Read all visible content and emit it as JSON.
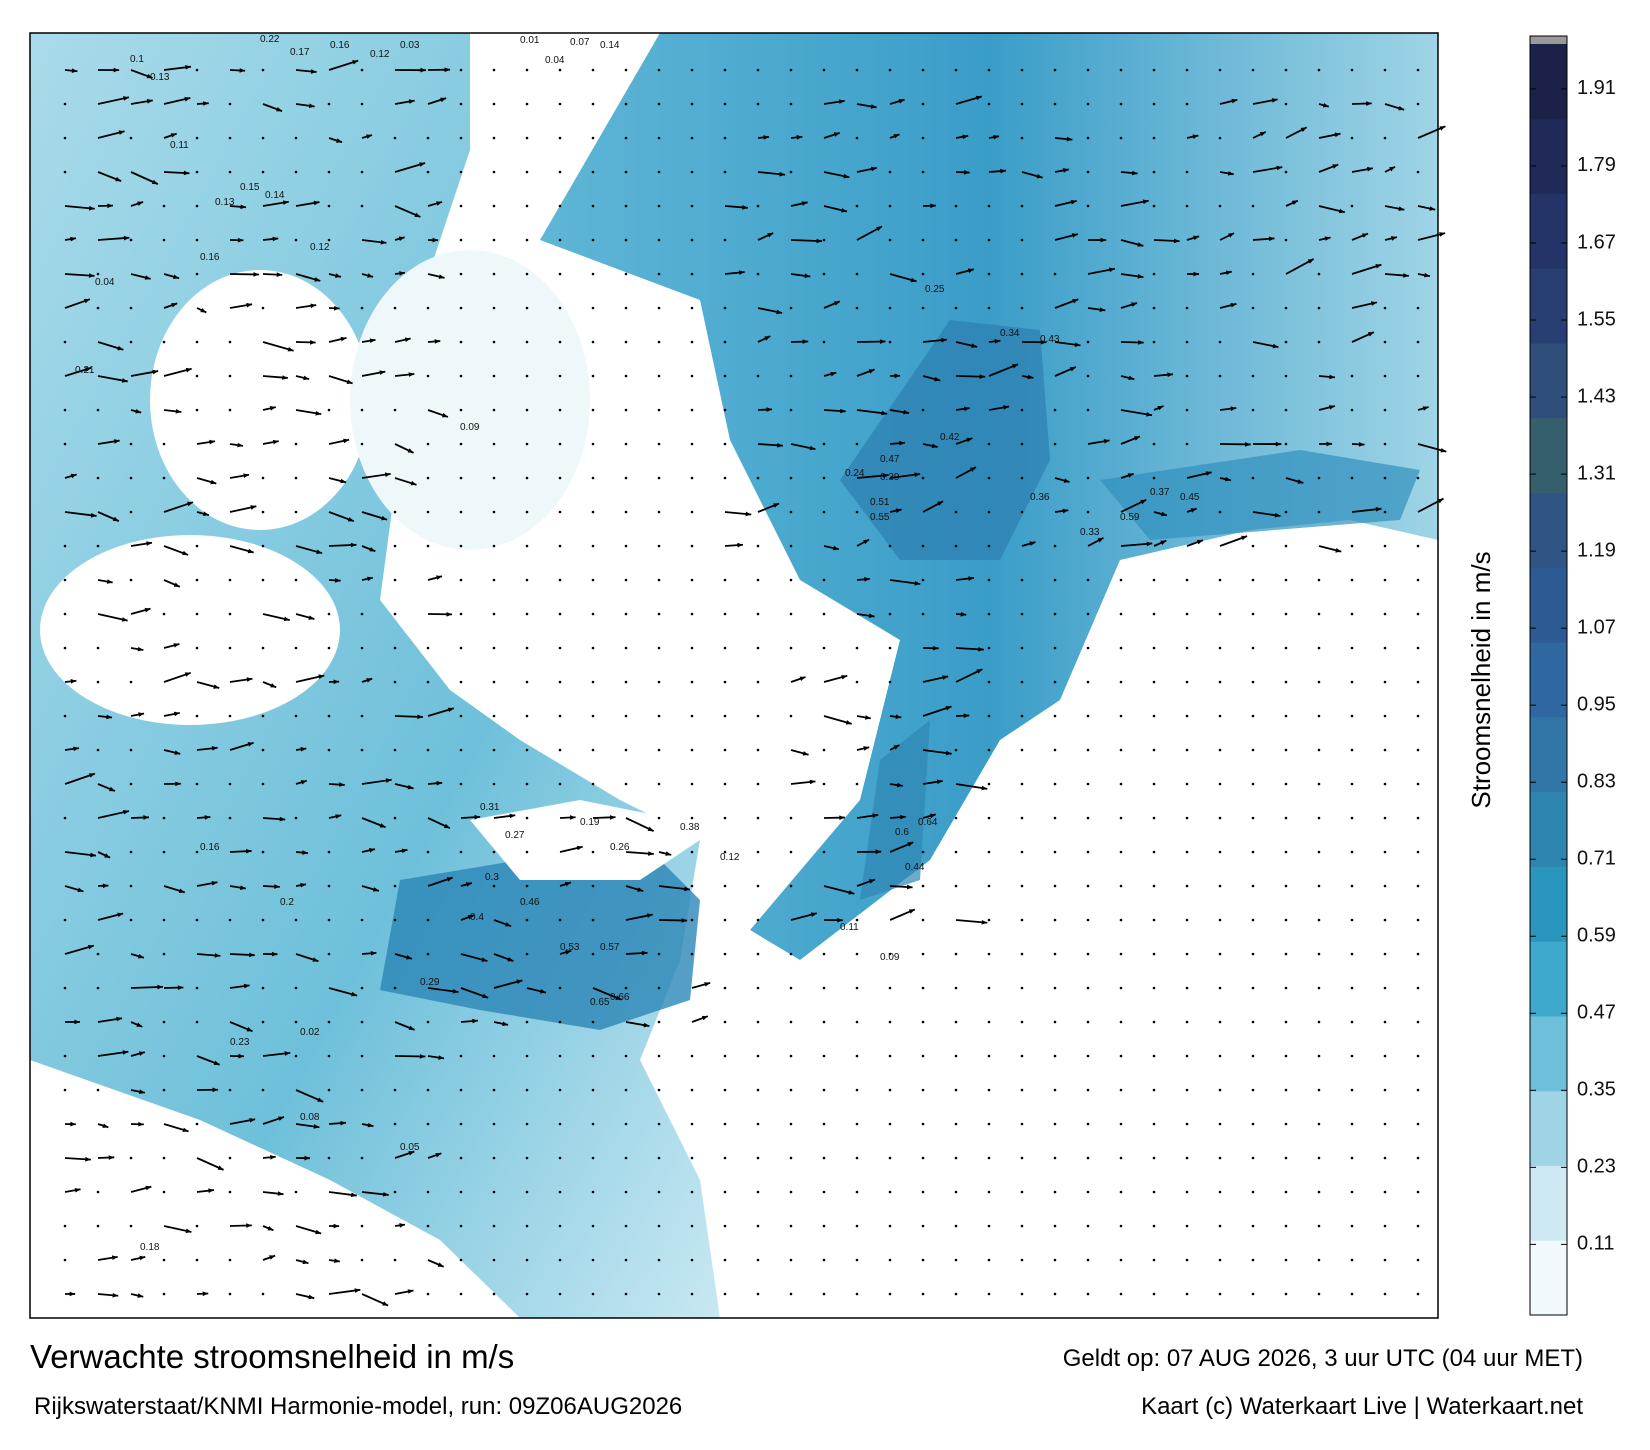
{
  "map": {
    "title": "Verwachte stroomsnelheid in m/s",
    "source": "Rijkswaterstaat/KNMI Harmonie-model, run: 09Z06AUG2026",
    "valid": "Geldt op: 07 AUG 2026, 3 uur UTC (04 uur MET)",
    "credit": "Kaart (c) Waterkaart Live | Waterkaart.net",
    "labels": [
      "0.22",
      "0.17",
      "0.16",
      "0.12",
      "0.03",
      "0.01",
      "0.04",
      "0.07",
      "0.14",
      "0.1",
      "0.13",
      "0.11",
      "0.15",
      "0.14",
      "0.16",
      "0.12",
      "0.04",
      "0.21",
      "0.34",
      "0.43",
      "0.25",
      "0.24",
      "0.39",
      "0.47",
      "0.51",
      "0.55",
      "0.45",
      "0.59",
      "0.37",
      "0.33",
      "0.36",
      "0.42",
      "0.09",
      "0.18",
      "0.16",
      "0.13",
      "0.29",
      "0.4",
      "0.46",
      "0.53",
      "0.57",
      "0.66",
      "0.65",
      "0.38",
      "0.26",
      "0.2",
      "0.23",
      "0.02",
      "0.05",
      "0.08",
      "0.19",
      "0.64",
      "0.6",
      "0.44",
      "0.3",
      "0.31",
      "0.27",
      "0.12",
      "0.11",
      "0.09"
    ]
  },
  "colorbar": {
    "label": "Stroomsnelheid in m/s",
    "lim": [
      0,
      1.98
    ],
    "ticks": [
      0.11,
      0.23,
      0.35,
      0.47,
      0.59,
      0.71,
      0.83,
      0.95,
      1.07,
      1.19,
      1.31,
      1.43,
      1.55,
      1.67,
      1.79,
      1.91
    ],
    "colors": [
      "#f2f9fc",
      "#cde9f2",
      "#9fd4e6",
      "#6ec0da",
      "#3ea9cc",
      "#2a96bd",
      "#2e86b0",
      "#3176a6",
      "#2f67a0",
      "#2e5a93",
      "#2f5585",
      "#365f6e",
      "#2f4f7a",
      "#283f73",
      "#243469",
      "#1f2a58",
      "#1b2148"
    ]
  }
}
